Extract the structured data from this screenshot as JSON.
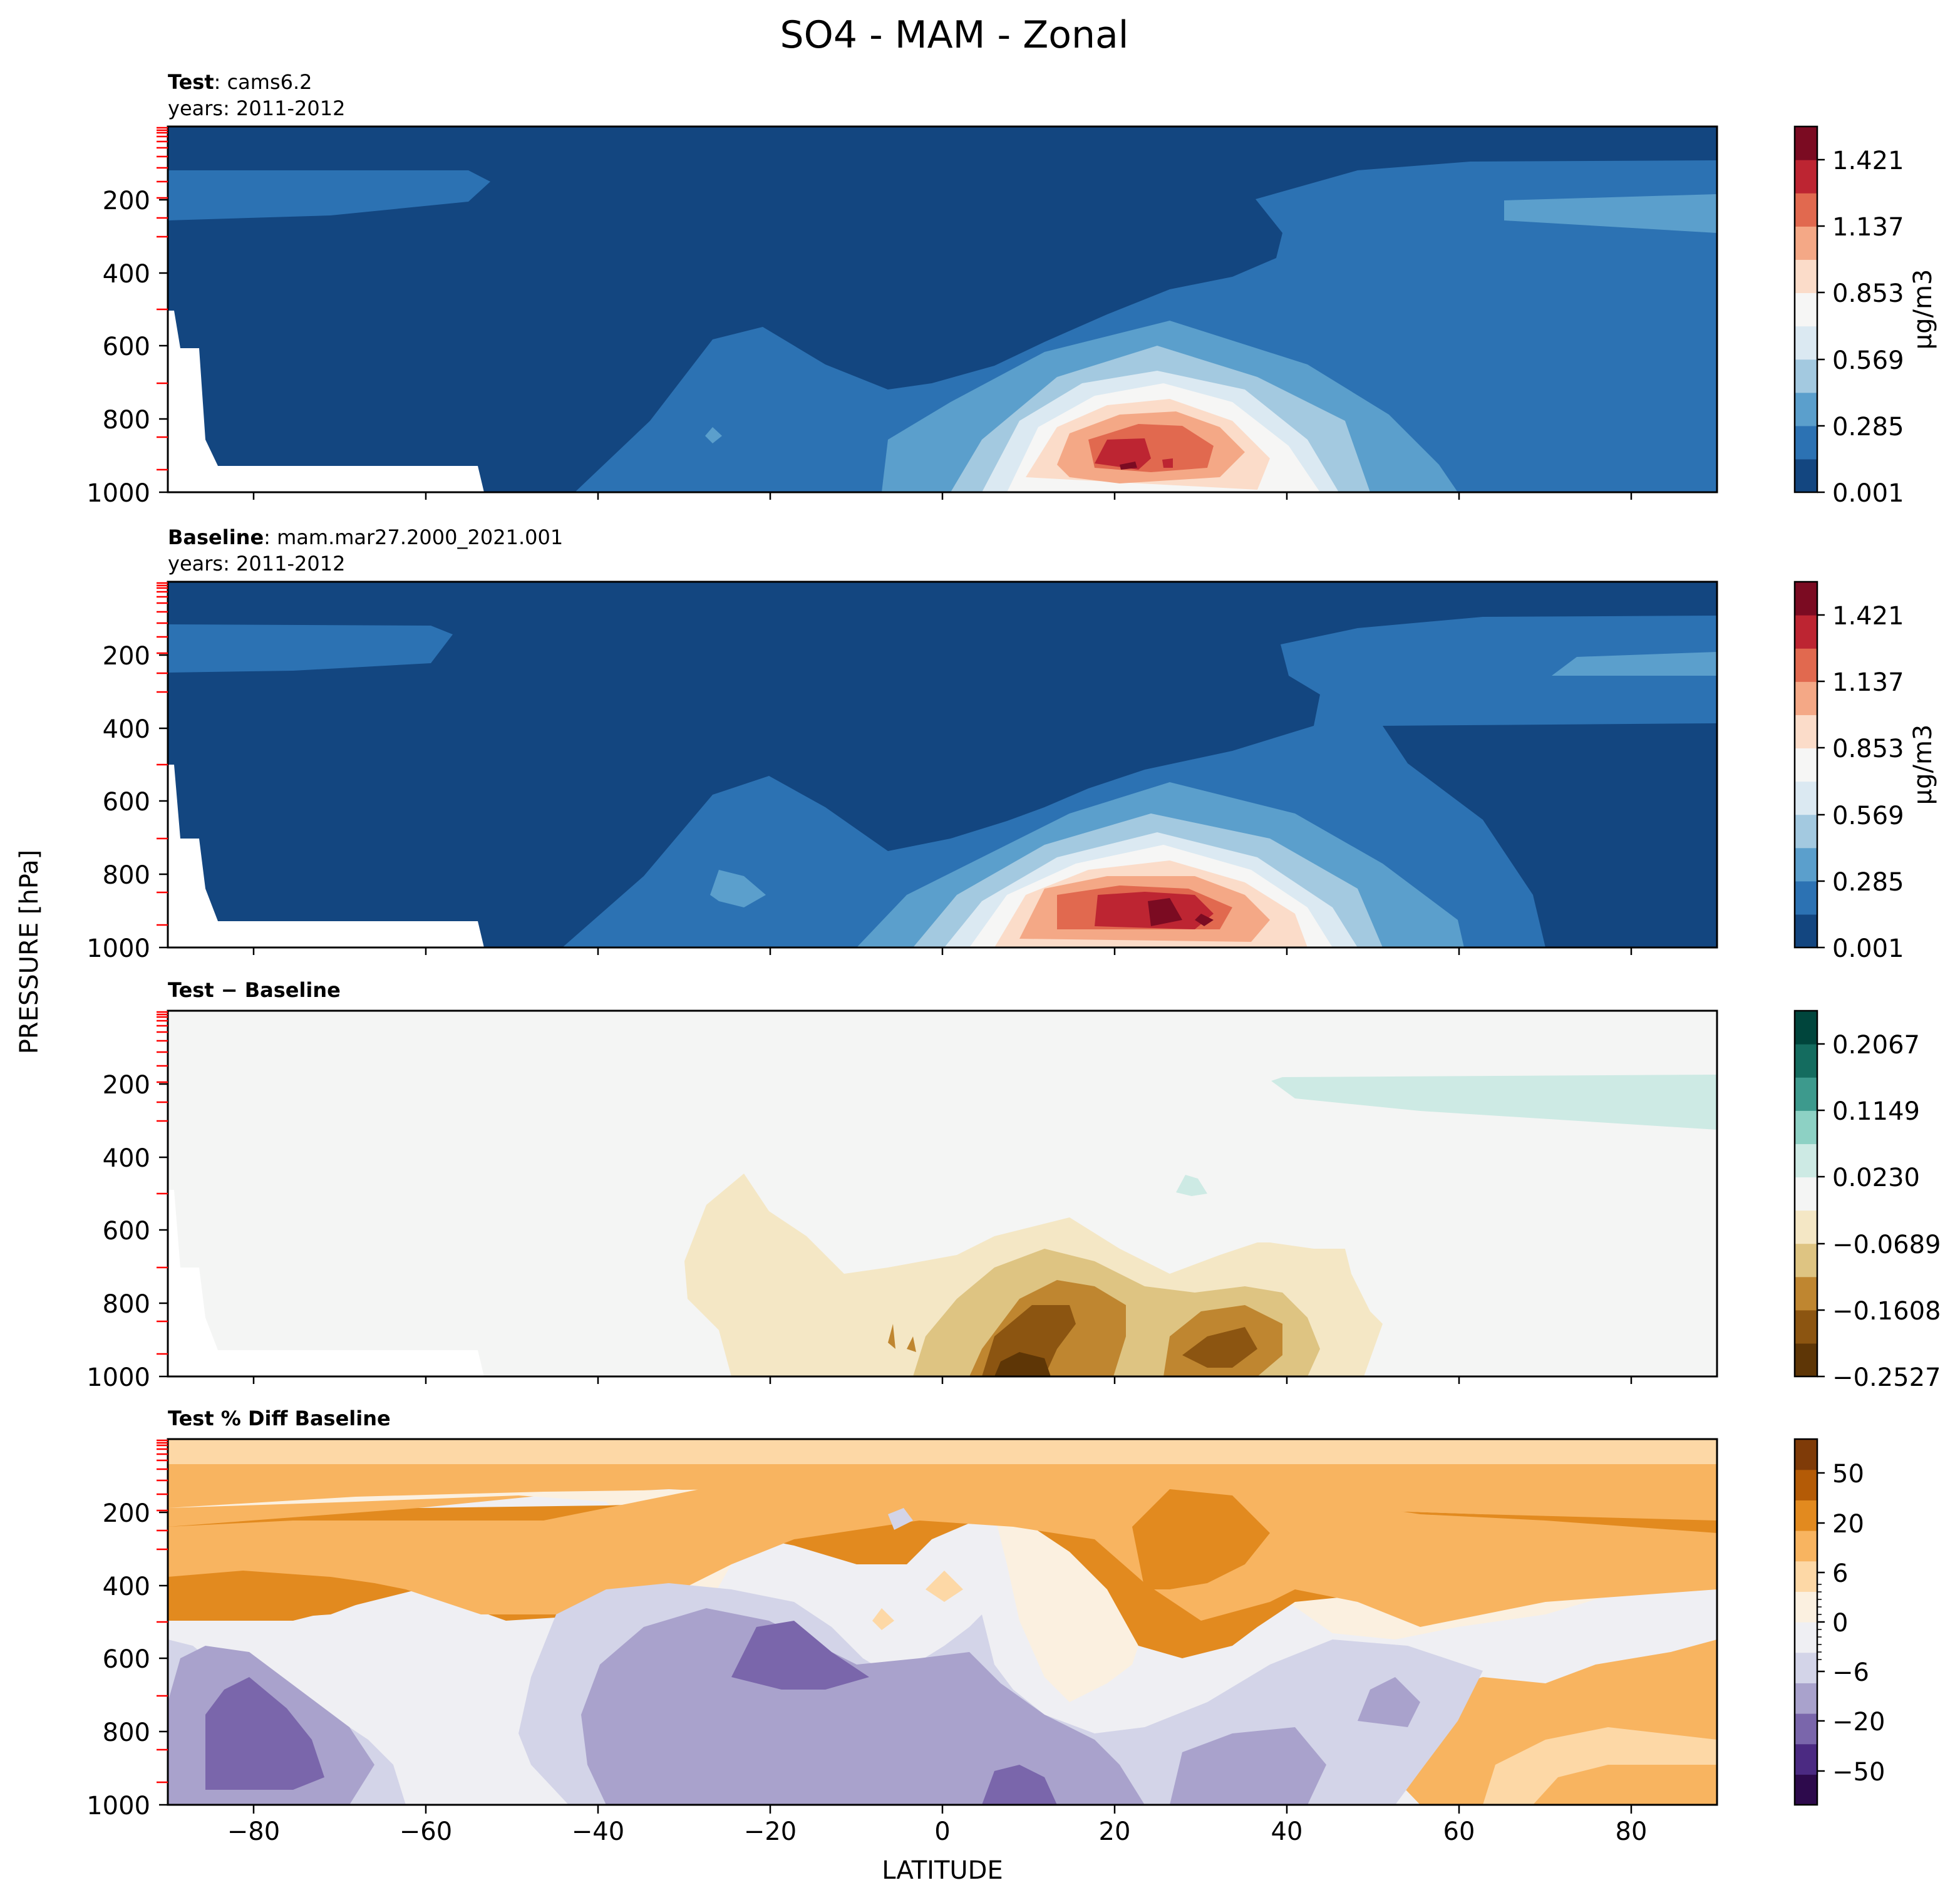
{
  "figure": {
    "title": "SO4 - MAM - Zonal",
    "xlabel": "LATITUDE",
    "ylabel": "PRESSURE [hPa]"
  },
  "colors": {
    "blue_red": [
      "#134680",
      "#2c72b3",
      "#5b9fcc",
      "#a3c9e0",
      "#dbe9f2",
      "#f6f6f5",
      "#fbdcc9",
      "#f4a886",
      "#e1694f",
      "#bd2532",
      "#7b0b22"
    ],
    "brown_green": [
      "#5e3606",
      "#8c5511",
      "#bf8630",
      "#dec482",
      "#f4e7c5",
      "#f4f5f4",
      "#cdeae4",
      "#8dd1c4",
      "#3d9a8d",
      "#146c5f",
      "#00453c"
    ],
    "purple_orange": [
      "#2d0a4c",
      "#4b2a82",
      "#7a66ab",
      "#a9a2cc",
      "#d3d4e8",
      "#efeff3",
      "#fbf0e0",
      "#fdd8a6",
      "#f8b460",
      "#e28a1f",
      "#b45b06",
      "#7f3b08"
    ],
    "tick_marks": "#ff0000"
  },
  "chart_data": [
    {
      "type": "heatmap",
      "panel": "test",
      "label_bold": "Test",
      "label_text": ": cams6.2",
      "years": "years: 2011-2012",
      "x": [
        -90,
        90
      ],
      "xlim": [
        -90,
        90
      ],
      "ylim": [
        1000,
        1
      ],
      "yticks": [
        "200",
        "400",
        "600",
        "800",
        "1000"
      ],
      "colorbar": {
        "ticks": [
          "1.421",
          "1.137",
          "0.853",
          "0.569",
          "0.285",
          "0.001"
        ],
        "label": "μg/m3",
        "levels": 11
      },
      "features": [
        {
          "lat": 27,
          "p": 900,
          "value": 1.45,
          "desc": "surface maximum"
        },
        {
          "lat": -75,
          "p": 200,
          "value": 0.2
        }
      ]
    },
    {
      "type": "heatmap",
      "panel": "baseline",
      "label_bold": "Baseline",
      "label_text": ": mam.mar27.2000_2021.001",
      "years": "years: 2011-2012",
      "xlim": [
        -90,
        90
      ],
      "ylim": [
        1000,
        1
      ],
      "yticks": [
        "200",
        "400",
        "600",
        "800",
        "1000"
      ],
      "colorbar": {
        "ticks": [
          "1.421",
          "1.137",
          "0.853",
          "0.569",
          "0.285",
          "0.001"
        ],
        "label": "μg/m3",
        "levels": 11
      },
      "features": [
        {
          "lat": 25,
          "p": 900,
          "value": 1.5
        }
      ]
    },
    {
      "type": "heatmap",
      "panel": "diff",
      "label_bold": "Test − Baseline",
      "xlim": [
        -90,
        90
      ],
      "ylim": [
        1000,
        1
      ],
      "yticks": [
        "200",
        "400",
        "600",
        "800",
        "1000"
      ],
      "colorbar": {
        "ticks": [
          "0.2067",
          "0.1149",
          "0.0230",
          "−0.0689",
          "−0.1608",
          "−0.2527"
        ],
        "levels": 11
      },
      "features": [
        {
          "lat": 10,
          "p": 950,
          "value": -0.24
        },
        {
          "lat": 30,
          "p": 900,
          "value": -0.18
        }
      ]
    },
    {
      "type": "heatmap",
      "panel": "pctdiff",
      "label_bold": "Test % Diff Baseline",
      "xlim": [
        -90,
        90
      ],
      "ylim": [
        1000,
        1
      ],
      "yticks": [
        "200",
        "400",
        "600",
        "800",
        "1000"
      ],
      "xticks": [
        "−80",
        "−60",
        "−40",
        "−20",
        "0",
        "20",
        "40",
        "60",
        "80"
      ],
      "colorbar": {
        "ticks": [
          "50",
          "20",
          "6",
          "0",
          "−6",
          "−20",
          "−50"
        ],
        "levels": 12
      },
      "features": [
        {
          "lat": 25,
          "p": 300,
          "value": 25
        },
        {
          "lat": -78,
          "p": 830,
          "value": -25
        }
      ]
    }
  ]
}
